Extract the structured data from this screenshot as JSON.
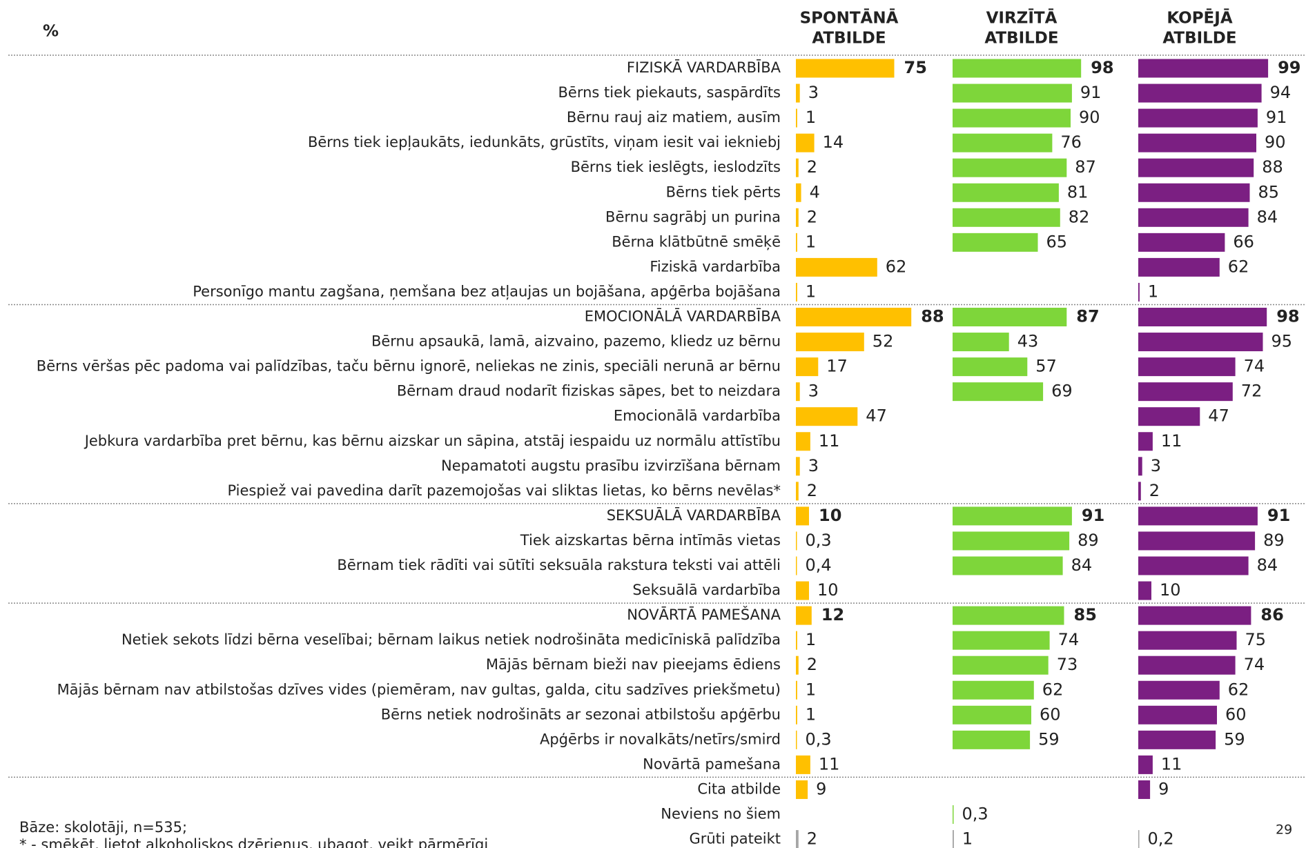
{
  "chart_data": {
    "type": "bar",
    "orientation": "horizontal",
    "title": "%",
    "categories": [
      "FIZISKĀ VARDARBĪBA",
      "Bērns tiek piekauts, saspārdīts",
      "Bērnu rauj aiz matiem, ausīm",
      "Bērns tiek iepļaukāts, iedunkāts, grūstīts, viņam iesit vai iekniebj",
      "Bērns tiek ieslēgts, ieslodzīts",
      "Bērns tiek pērts",
      "Bērnu sagrābj un purina",
      "Bērna klātbūtnē smēķē",
      "Fiziskā vardarbība",
      "Personīgo mantu zagšana, ņemšana bez atļaujas un bojāšana, apģērba bojāšana",
      "EMOCIONĀLĀ VARDARBĪBA",
      "Bērnu apsaukā, lamā, aizvaino, pazemo, kliedz uz bērnu",
      "Bērns vēršas pēc padoma vai palīdzības, taču bērnu ignorē, neliekas ne zinis, speciāli nerunā ar bērnu",
      "Bērnam draud nodarīt fiziskas sāpes, bet to neizdara",
      "Emocionālā vardarbība",
      "Jebkura vardarbība pret bērnu, kas bērnu aizskar un sāpina, atstāj iespaidu uz normālu attīstību",
      "Nepamatoti augstu prasību izvirzīšana bērnam",
      "Piespiež vai pavedina darīt pazemojošas vai sliktas lietas, ko bērns nevēlas*",
      "SEKSUĀLĀ VARDARBĪBA",
      "Tiek aizskartas bērna intīmās vietas",
      "Bērnam tiek rādīti vai sūtīti seksuāla rakstura teksti vai attēli",
      "Seksuālā vardarbība",
      "NOVĀRTĀ PAMEŠANA",
      "Netiek sekots līdzi bērna veselībai; bērnam laikus netiek nodrošināta medicīniskā palīdzība",
      "Mājās bērnam bieži nav pieejams ēdiens",
      "Mājās bērnam nav atbilstošas dzīves vides (piemēram, nav gultas, galda, citu sadzīves priekšmetu)",
      "Bērns netiek nodrošināts ar sezonai atbilstošu apģērbu",
      "Apģērbs ir novalkāts/netīrs/smird",
      "Novārtā pamešana",
      "Cita atbilde",
      "Neviens no šiem",
      "Grūti pateikt"
    ],
    "series": [
      {
        "name": [
          "SPONTĀNĀ",
          "ATBILDE"
        ],
        "color": "#FFC000",
        "values": [
          75,
          3,
          1,
          14,
          2,
          4,
          2,
          1,
          62,
          1,
          88,
          52,
          17,
          3,
          47,
          11,
          3,
          2,
          10,
          0.3,
          0.4,
          10,
          12,
          1,
          2,
          1,
          1,
          0.3,
          11,
          9,
          null,
          2
        ],
        "value_labels": [
          null,
          null,
          null,
          null,
          null,
          null,
          null,
          null,
          null,
          null,
          null,
          null,
          null,
          null,
          null,
          null,
          null,
          null,
          null,
          "0,3",
          "0,4",
          null,
          null,
          null,
          null,
          null,
          null,
          "0,3",
          null,
          null,
          null,
          null
        ]
      },
      {
        "name": [
          "VIRZĪTĀ",
          "ATBILDE"
        ],
        "color": "#7ED63A",
        "values": [
          98,
          91,
          90,
          76,
          87,
          81,
          82,
          65,
          null,
          null,
          87,
          43,
          57,
          69,
          null,
          null,
          null,
          null,
          91,
          89,
          84,
          null,
          85,
          74,
          73,
          62,
          60,
          59,
          null,
          null,
          0.3,
          1
        ],
        "value_labels": [
          null,
          null,
          null,
          null,
          null,
          null,
          null,
          null,
          null,
          null,
          null,
          null,
          null,
          null,
          null,
          null,
          null,
          null,
          null,
          null,
          null,
          null,
          null,
          null,
          null,
          null,
          null,
          null,
          null,
          null,
          "0,3",
          null
        ]
      },
      {
        "name": [
          "KOPĒJĀ",
          "ATBILDE"
        ],
        "color": "#7B1F82",
        "values": [
          99,
          94,
          91,
          90,
          88,
          85,
          84,
          66,
          62,
          1,
          98,
          95,
          74,
          72,
          47,
          11,
          3,
          2,
          91,
          89,
          84,
          10,
          86,
          75,
          74,
          62,
          60,
          59,
          11,
          9,
          null,
          0.2
        ],
        "value_labels": [
          null,
          null,
          null,
          null,
          null,
          null,
          null,
          null,
          null,
          null,
          null,
          null,
          null,
          null,
          null,
          null,
          null,
          null,
          null,
          null,
          null,
          null,
          null,
          null,
          null,
          null,
          null,
          null,
          null,
          null,
          null,
          "0,2"
        ]
      }
    ],
    "xlim": [
      0,
      100
    ],
    "bold_categories": [
      0,
      10,
      18,
      22
    ],
    "separators_before": [
      10,
      18,
      22,
      29
    ],
    "muted_categories": [
      31
    ],
    "muted_color": "#A6A6A6",
    "footnotes": [
      "Bāze: skolotāji, n=535;",
      "* - smēķēt, lietot alkoholiskos dzērienus, ubagot, veikt pārmērīgi"
    ],
    "page_number": "29"
  }
}
